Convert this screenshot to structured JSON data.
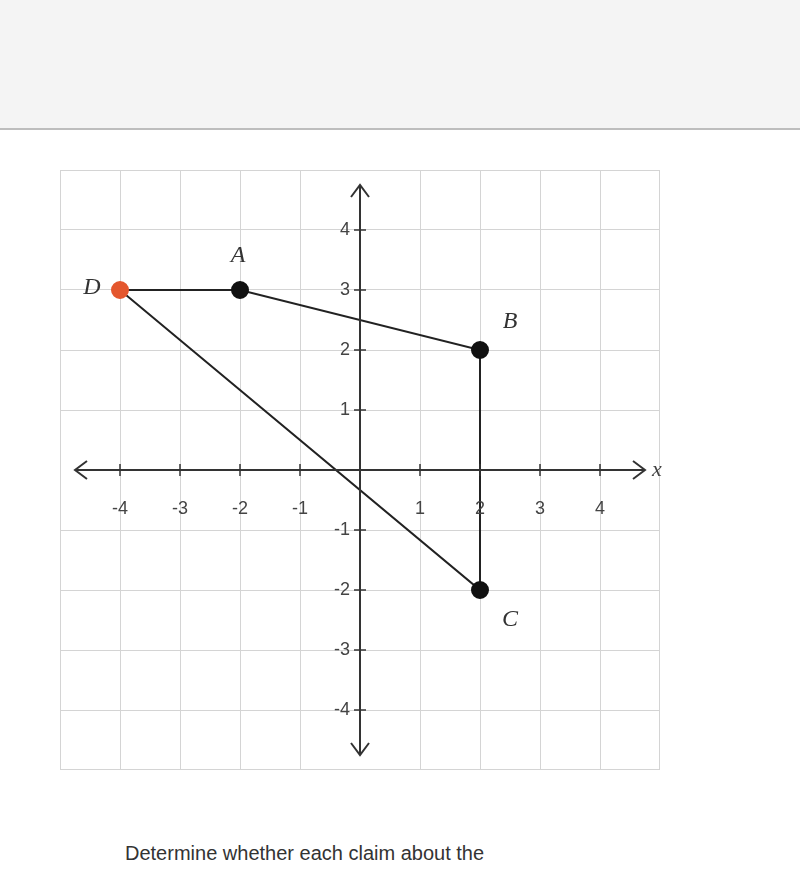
{
  "chart_data": {
    "type": "scatter",
    "x": [
      -4,
      -2,
      2,
      2
    ],
    "values": [
      3,
      3,
      2,
      -2
    ],
    "point_labels": [
      "D",
      "A",
      "B",
      "C"
    ],
    "colors": [
      "#e4572e",
      "#111111",
      "#111111",
      "#111111"
    ],
    "color": "#222222",
    "xlabel": "x",
    "xlim": [
      -5,
      5
    ],
    "ylim": [
      -5,
      5
    ],
    "xticks": [
      -4,
      -3,
      -2,
      -1,
      1,
      2,
      3,
      4
    ],
    "yticks": [
      -4,
      -3,
      -2,
      -1,
      1,
      2,
      3,
      4
    ],
    "grid": true
  },
  "caption": "Determine whether each claim about the"
}
